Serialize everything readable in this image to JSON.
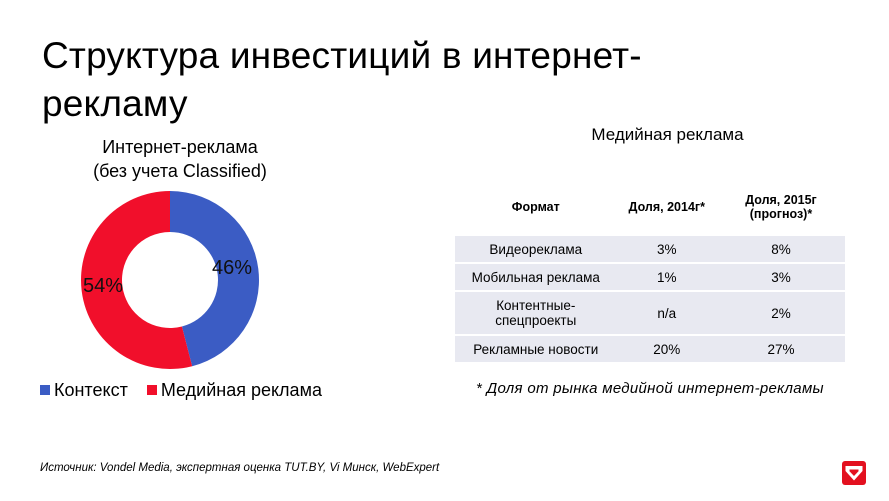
{
  "page": {
    "title": "Структура инвестиций в интернет-рекламу",
    "source": "Источник: Vondel Media, экспертная оценка TUT.BY, Vi Минск, WebExpert",
    "logo_icon": "tut-by-logo"
  },
  "chart_data": {
    "type": "pie",
    "title_line1": "Интернет-реклама",
    "title_line2": "(без учета Classified)",
    "categories": [
      "Контекст",
      "Медийная реклама"
    ],
    "values": [
      46,
      54
    ],
    "labels": [
      "46%",
      "54%"
    ],
    "colors": [
      "#3b5cc4",
      "#f10f2b"
    ],
    "donut": true,
    "legend": "bottom"
  },
  "media_table": {
    "title": "Медийная реклама",
    "headers": [
      "Формат",
      "Доля, 2014г*",
      "Доля, 2015г (прогноз)*"
    ],
    "rows": [
      [
        "Видеореклама",
        "3%",
        "8%"
      ],
      [
        "Мобильная реклама",
        "1%",
        "3%"
      ],
      [
        "Контентные-спецпроекты",
        "n/a",
        "2%"
      ],
      [
        "Рекламные новости",
        "20%",
        "27%"
      ]
    ],
    "row_color": "#e8e9f1",
    "footnote": "* Доля от рынка медийной интернет-рекламы"
  }
}
